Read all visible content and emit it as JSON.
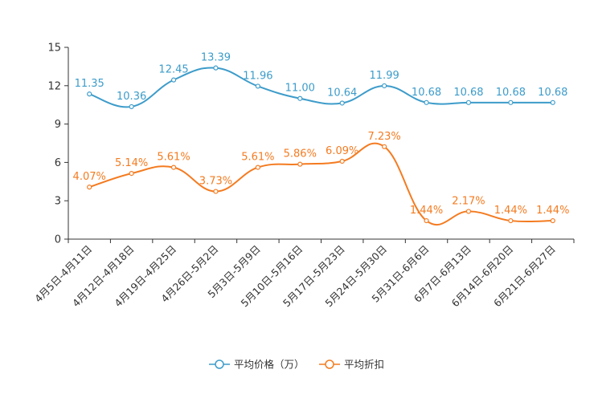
{
  "chart_data": {
    "type": "line",
    "categories": [
      "4月5日-4月11日",
      "4月12日-4月18日",
      "4月19日-4月25日",
      "4月26日-5月2日",
      "5月3日-5月9日",
      "5月10日-5月16日",
      "5月17日-5月23日",
      "5月24日-5月30日",
      "5月31日-6月6日",
      "6月7日-6月13日",
      "6月14日-6月20日",
      "6月21日-6月27日"
    ],
    "ylim": [
      0,
      15
    ],
    "yticks": [
      "0",
      "3",
      "6",
      "9",
      "12",
      "15"
    ],
    "series": [
      {
        "name": "平均价格（万）",
        "color": "#3d9cca",
        "values": [
          11.35,
          10.36,
          12.45,
          13.39,
          11.96,
          11.0,
          10.64,
          11.99,
          10.68,
          10.68,
          10.68,
          10.68
        ],
        "labels": [
          "11.35",
          "10.36",
          "12.45",
          "13.39",
          "11.96",
          "11.00",
          "10.64",
          "11.99",
          "10.68",
          "10.68",
          "10.68",
          "10.68"
        ]
      },
      {
        "name": "平均折扣",
        "color": "#f47b20",
        "values": [
          4.07,
          5.14,
          5.61,
          3.73,
          5.61,
          5.86,
          6.09,
          7.23,
          1.44,
          2.17,
          1.44,
          1.44
        ],
        "labels": [
          "4.07%",
          "5.14%",
          "5.61%",
          "3.73%",
          "5.61%",
          "5.86%",
          "6.09%",
          "7.23%",
          "1.44%",
          "2.17%",
          "1.44%",
          "1.44%"
        ]
      }
    ],
    "legend": "bottom-center",
    "grid": false
  }
}
